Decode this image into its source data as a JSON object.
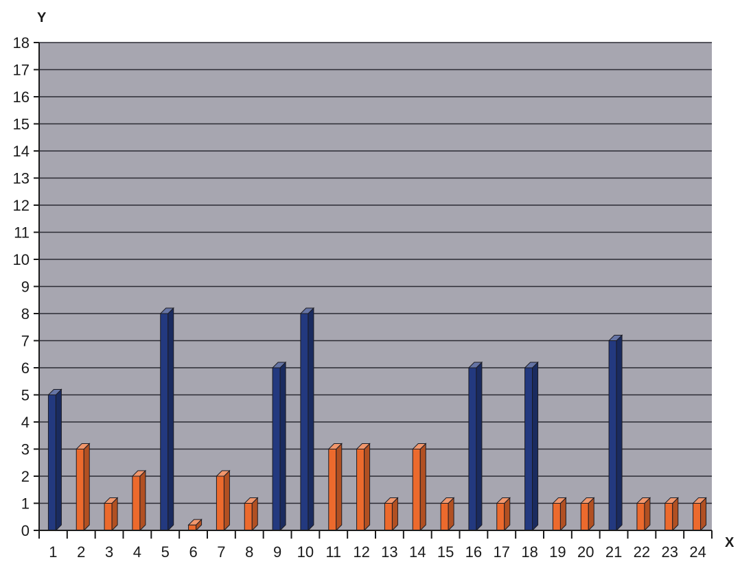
{
  "chart_data": {
    "type": "bar",
    "title": "",
    "xlabel": "X",
    "ylabel": "Y",
    "ylim": [
      0,
      18
    ],
    "y_ticks": [
      "0",
      "1",
      "2",
      "3",
      "4",
      "5",
      "6",
      "7",
      "8",
      "9",
      "10",
      "11",
      "12",
      "13",
      "14",
      "15",
      "16",
      "17",
      "18"
    ],
    "categories": [
      "1",
      "2",
      "3",
      "4",
      "5",
      "6",
      "7",
      "8",
      "9",
      "10",
      "11",
      "12",
      "13",
      "14",
      "15",
      "16",
      "17",
      "18",
      "19",
      "20",
      "21",
      "22",
      "23",
      "24"
    ],
    "values": [
      5,
      3,
      1,
      2,
      8,
      0.2,
      2,
      1,
      6,
      8,
      3,
      3,
      1,
      3,
      1,
      6,
      1,
      6,
      1,
      1,
      7,
      1,
      1,
      1
    ],
    "bar_colors": [
      "blue",
      "orange",
      "orange",
      "orange",
      "blue",
      "orange",
      "orange",
      "orange",
      "blue",
      "blue",
      "orange",
      "orange",
      "orange",
      "orange",
      "orange",
      "blue",
      "orange",
      "blue",
      "orange",
      "orange",
      "blue",
      "orange",
      "orange",
      "orange"
    ],
    "grid": true,
    "colors": {
      "plot_background": "#a7a6b0",
      "gridline": "#2a2a33",
      "blue": "#23397f",
      "orange": "#ec6a2d"
    }
  }
}
